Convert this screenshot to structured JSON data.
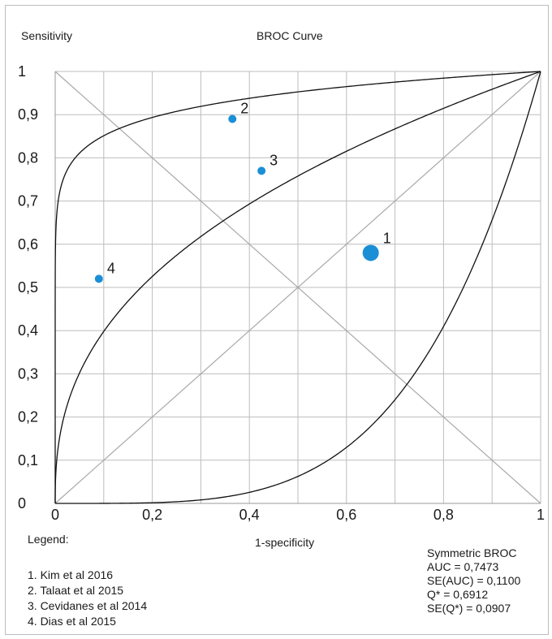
{
  "chart_data": {
    "type": "scatter",
    "title": "BROC Curve",
    "xlabel": "1-specificity",
    "ylabel": "Sensitivity",
    "xlim": [
      0,
      1
    ],
    "ylim": [
      0,
      1
    ],
    "grid": true,
    "x_ticks": [
      "0",
      "0,2",
      "0,4",
      "0,6",
      "0,8",
      "1"
    ],
    "y_ticks": [
      "0",
      "0,1",
      "0,2",
      "0,3",
      "0,4",
      "0,5",
      "0,6",
      "0,7",
      "0,8",
      "0,9",
      "1"
    ],
    "points": [
      {
        "label": "1",
        "x": 0.65,
        "y": 0.58,
        "size": "large"
      },
      {
        "label": "2",
        "x": 0.365,
        "y": 0.89,
        "size": "small"
      },
      {
        "label": "3",
        "x": 0.425,
        "y": 0.77,
        "size": "small"
      },
      {
        "label": "4",
        "x": 0.09,
        "y": 0.52,
        "size": "small"
      }
    ],
    "point_color": "#1a8fd6",
    "legend_title": "Legend:",
    "legend": [
      "1. Kim et al 2016",
      "2. Talaat et al 2015",
      "3. Cevidanes et al 2014",
      "4. Dias et al 2015"
    ],
    "stats": [
      "Symmetric BROC",
      "AUC = 0,7473",
      "SE(AUC) = 0,1100",
      "Q* = 0,6912",
      "SE(Q*) = 0,0907"
    ]
  }
}
